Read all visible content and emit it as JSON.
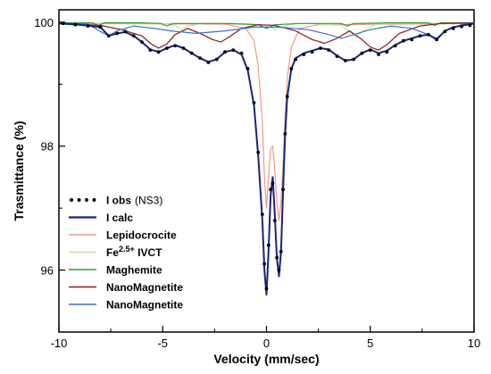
{
  "chart_data": {
    "type": "line",
    "xlabel": "Velocity (mm/sec)",
    "ylabel": "Trasmittance (%)",
    "xlim": [
      -10,
      10
    ],
    "ylim": [
      95.0,
      100.2
    ],
    "xticks": [
      -10,
      -5,
      0,
      5,
      10
    ],
    "xtick_labels": [
      "-10",
      "-5",
      "0",
      "5",
      "10"
    ],
    "yticks": [
      96,
      98,
      100
    ],
    "ytick_labels": [
      "96",
      "98",
      "100"
    ],
    "grid": false,
    "legend_placement": "bottom-left",
    "series": [
      {
        "name": "I obs (NS3)",
        "legend_main": "I obs",
        "legend_suffix": "(NS3)",
        "style": "dots",
        "color": "#000000",
        "x": [
          -9.8,
          -9.2,
          -8.6,
          -8.0,
          -7.6,
          -7.2,
          -6.8,
          -6.4,
          -6.0,
          -5.6,
          -5.2,
          -4.8,
          -4.4,
          -4.0,
          -3.6,
          -3.2,
          -2.8,
          -2.4,
          -2.0,
          -1.6,
          -1.2,
          -0.9,
          -0.6,
          -0.4,
          -0.2,
          -0.1,
          0.0,
          0.1,
          0.2,
          0.3,
          0.4,
          0.5,
          0.6,
          0.7,
          0.8,
          0.9,
          1.0,
          1.2,
          1.4,
          1.8,
          2.2,
          2.6,
          3.0,
          3.4,
          3.8,
          4.2,
          4.6,
          5.0,
          5.4,
          5.8,
          6.2,
          6.6,
          7.0,
          7.4,
          7.8,
          8.2,
          8.6,
          9.0,
          9.4,
          9.8
        ],
        "y": [
          99.98,
          99.96,
          99.94,
          99.92,
          99.78,
          99.82,
          99.85,
          99.78,
          99.68,
          99.55,
          99.52,
          99.58,
          99.62,
          99.58,
          99.5,
          99.42,
          99.35,
          99.4,
          99.52,
          99.55,
          99.5,
          99.25,
          98.7,
          97.9,
          96.9,
          96.1,
          95.7,
          96.4,
          97.3,
          97.4,
          96.8,
          96.2,
          96.0,
          96.3,
          97.3,
          98.2,
          98.8,
          99.25,
          99.4,
          99.48,
          99.52,
          99.58,
          99.55,
          99.45,
          99.38,
          99.4,
          99.5,
          99.55,
          99.48,
          99.52,
          99.62,
          99.7,
          99.72,
          99.78,
          99.8,
          99.72,
          99.85,
          99.9,
          99.93,
          99.95
        ]
      },
      {
        "name": "I calc",
        "style": "line",
        "color": "#1a237e",
        "width": 2,
        "x": [
          -10,
          -9.0,
          -8.0,
          -7.6,
          -7.2,
          -6.8,
          -6.4,
          -6.0,
          -5.6,
          -5.2,
          -4.8,
          -4.4,
          -4.0,
          -3.6,
          -3.2,
          -2.8,
          -2.4,
          -2.0,
          -1.6,
          -1.2,
          -0.9,
          -0.6,
          -0.4,
          -0.2,
          -0.1,
          0.0,
          0.1,
          0.2,
          0.3,
          0.4,
          0.5,
          0.6,
          0.7,
          0.8,
          0.9,
          1.0,
          1.2,
          1.4,
          1.8,
          2.2,
          2.6,
          3.0,
          3.4,
          3.8,
          4.2,
          4.6,
          5.0,
          5.4,
          5.8,
          6.2,
          6.6,
          7.0,
          7.4,
          7.8,
          8.2,
          8.6,
          9.0,
          10
        ],
        "y": [
          99.98,
          99.96,
          99.92,
          99.78,
          99.82,
          99.84,
          99.78,
          99.68,
          99.56,
          99.52,
          99.58,
          99.63,
          99.58,
          99.5,
          99.42,
          99.36,
          99.4,
          99.52,
          99.55,
          99.48,
          99.22,
          98.65,
          97.85,
          96.8,
          96.0,
          95.6,
          96.3,
          97.2,
          97.5,
          96.9,
          96.2,
          95.9,
          96.3,
          97.3,
          98.2,
          98.8,
          99.25,
          99.42,
          99.5,
          99.54,
          99.58,
          99.56,
          99.46,
          99.38,
          99.4,
          99.5,
          99.56,
          99.5,
          99.54,
          99.63,
          99.7,
          99.74,
          99.78,
          99.8,
          99.72,
          99.86,
          99.92,
          99.98
        ]
      },
      {
        "name": "Lepidocrocite",
        "style": "line",
        "color": "#ef9a8a",
        "width": 1.2,
        "x": [
          -10,
          -2.0,
          -1.0,
          -0.6,
          -0.4,
          -0.2,
          -0.1,
          0.0,
          0.1,
          0.2,
          0.3,
          0.4,
          0.5,
          0.6,
          0.7,
          0.8,
          0.9,
          1.0,
          1.2,
          1.6,
          2.5,
          10
        ],
        "y": [
          99.98,
          99.97,
          99.9,
          99.7,
          99.3,
          98.4,
          97.5,
          97.0,
          97.5,
          97.95,
          98.0,
          97.6,
          97.1,
          96.8,
          97.1,
          97.7,
          98.5,
          99.1,
          99.6,
          99.9,
          99.96,
          99.98
        ]
      },
      {
        "name": "Fe2.5+ IVCT",
        "legend_main": "Fe",
        "legend_sup": "2.5+",
        "legend_suffix": " IVCT",
        "style": "line",
        "color": "#c5e6a6",
        "width": 1.2,
        "x": [
          -10,
          -5.0,
          -4.4,
          -4.1,
          -3.8,
          -3.0,
          -1.0,
          0.0,
          0.4,
          0.8,
          1.2,
          2.0,
          3.6,
          4.0,
          4.3,
          4.6,
          5.2,
          6.0,
          10
        ],
        "y": [
          99.99,
          99.98,
          99.95,
          99.88,
          99.94,
          99.98,
          99.98,
          99.95,
          99.88,
          99.93,
          99.97,
          99.98,
          99.95,
          99.85,
          99.75,
          99.85,
          99.96,
          99.98,
          99.99
        ]
      },
      {
        "name": "Maghemite",
        "style": "line",
        "color": "#2e9e2e",
        "width": 1.2,
        "x": [
          -10,
          -8.4,
          -8.1,
          -7.8,
          -6.0,
          -5.1,
          -4.8,
          -4.5,
          -2.0,
          -0.4,
          0.0,
          0.4,
          1.6,
          3.6,
          3.9,
          4.2,
          6.0,
          7.8,
          8.1,
          8.4,
          10
        ],
        "y": [
          99.99,
          99.99,
          99.95,
          99.99,
          99.99,
          99.98,
          99.94,
          99.98,
          99.98,
          99.96,
          99.9,
          99.96,
          99.98,
          99.98,
          99.94,
          99.98,
          99.99,
          99.99,
          99.95,
          99.99,
          99.99
        ]
      },
      {
        "name": "NanoMagnetite",
        "style": "line",
        "color": "#8b1a1a",
        "width": 1.2,
        "x": [
          -10,
          -8.0,
          -7.0,
          -6.0,
          -5.6,
          -5.2,
          -4.8,
          -4.4,
          -3.8,
          -3.2,
          -2.6,
          -2.2,
          -1.8,
          -1.2,
          -0.4,
          0.4,
          1.4,
          2.2,
          2.8,
          3.4,
          4.0,
          4.6,
          5.0,
          5.4,
          5.8,
          6.4,
          7.4,
          8.4,
          10
        ],
        "y": [
          99.98,
          99.95,
          99.88,
          99.78,
          99.66,
          99.58,
          99.65,
          99.8,
          99.9,
          99.82,
          99.72,
          99.68,
          99.76,
          99.9,
          99.96,
          99.95,
          99.86,
          99.72,
          99.66,
          99.74,
          99.86,
          99.72,
          99.6,
          99.55,
          99.64,
          99.82,
          99.94,
          99.98,
          99.99
        ]
      },
      {
        "name": "NanoMagnetite",
        "style": "line",
        "color": "#3a6fd8",
        "width": 1.2,
        "x": [
          -10,
          -8.6,
          -8.0,
          -7.6,
          -7.2,
          -6.4,
          -5.4,
          -4.6,
          -3.4,
          -2.0,
          -0.6,
          0.6,
          2.0,
          3.0,
          3.6,
          4.2,
          5.0,
          6.0,
          7.0,
          7.8,
          8.2,
          8.6,
          9.4,
          10
        ],
        "y": [
          99.99,
          99.97,
          99.85,
          99.78,
          99.86,
          99.94,
          99.9,
          99.86,
          99.82,
          99.86,
          99.92,
          99.92,
          99.88,
          99.8,
          99.74,
          99.8,
          99.88,
          99.94,
          99.9,
          99.8,
          99.74,
          99.86,
          99.96,
          99.99
        ]
      }
    ]
  }
}
